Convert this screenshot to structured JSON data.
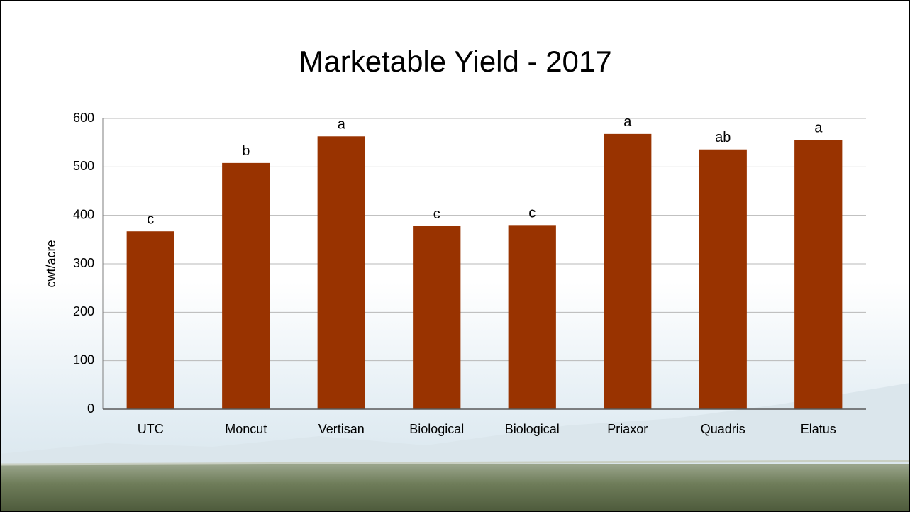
{
  "chart_data": {
    "type": "bar",
    "title": "Marketable Yield - 2017",
    "y_label": "cwt/acre",
    "categories": [
      "UTC",
      "Moncut",
      "Vertisan",
      "Biological",
      "Biological",
      "Priaxor",
      "Quadris",
      "Elatus"
    ],
    "values": [
      367,
      508,
      563,
      378,
      380,
      568,
      536,
      556
    ],
    "annotations": [
      "c",
      "b",
      "a",
      "c",
      "c",
      "a",
      "ab",
      "a"
    ],
    "color": "#993300",
    "ylim": [
      0,
      600
    ],
    "yticks": [
      0,
      100,
      200,
      300,
      400,
      500,
      600
    ],
    "grid": true
  }
}
